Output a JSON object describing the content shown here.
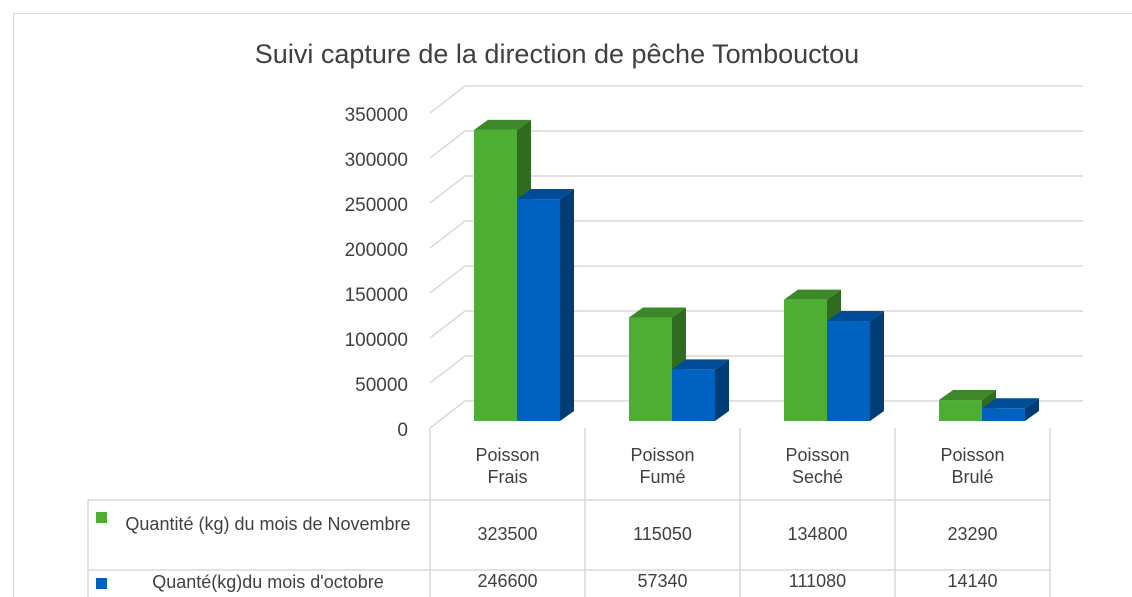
{
  "chart_data": {
    "type": "bar3d",
    "title": "Suivi capture de la direction de pêche Tombouctou",
    "categories": [
      "Poisson Frais",
      "Poisson Fumé",
      "Poisson Seché",
      "Poisson Brulé"
    ],
    "series": [
      {
        "name": "Quantité (kg) du mois de Novembre",
        "color": "#4eae34",
        "values": [
          323500,
          115050,
          134800,
          23290
        ]
      },
      {
        "name": "Quanté(kg)du mois d'octobre",
        "color": "#0062c0",
        "values": [
          246600,
          57340,
          111080,
          14140
        ]
      }
    ],
    "ylim": [
      0,
      350000
    ],
    "yticks": [
      0,
      50000,
      100000,
      150000,
      200000,
      250000,
      300000,
      350000
    ],
    "grid": true,
    "data_table": true
  }
}
